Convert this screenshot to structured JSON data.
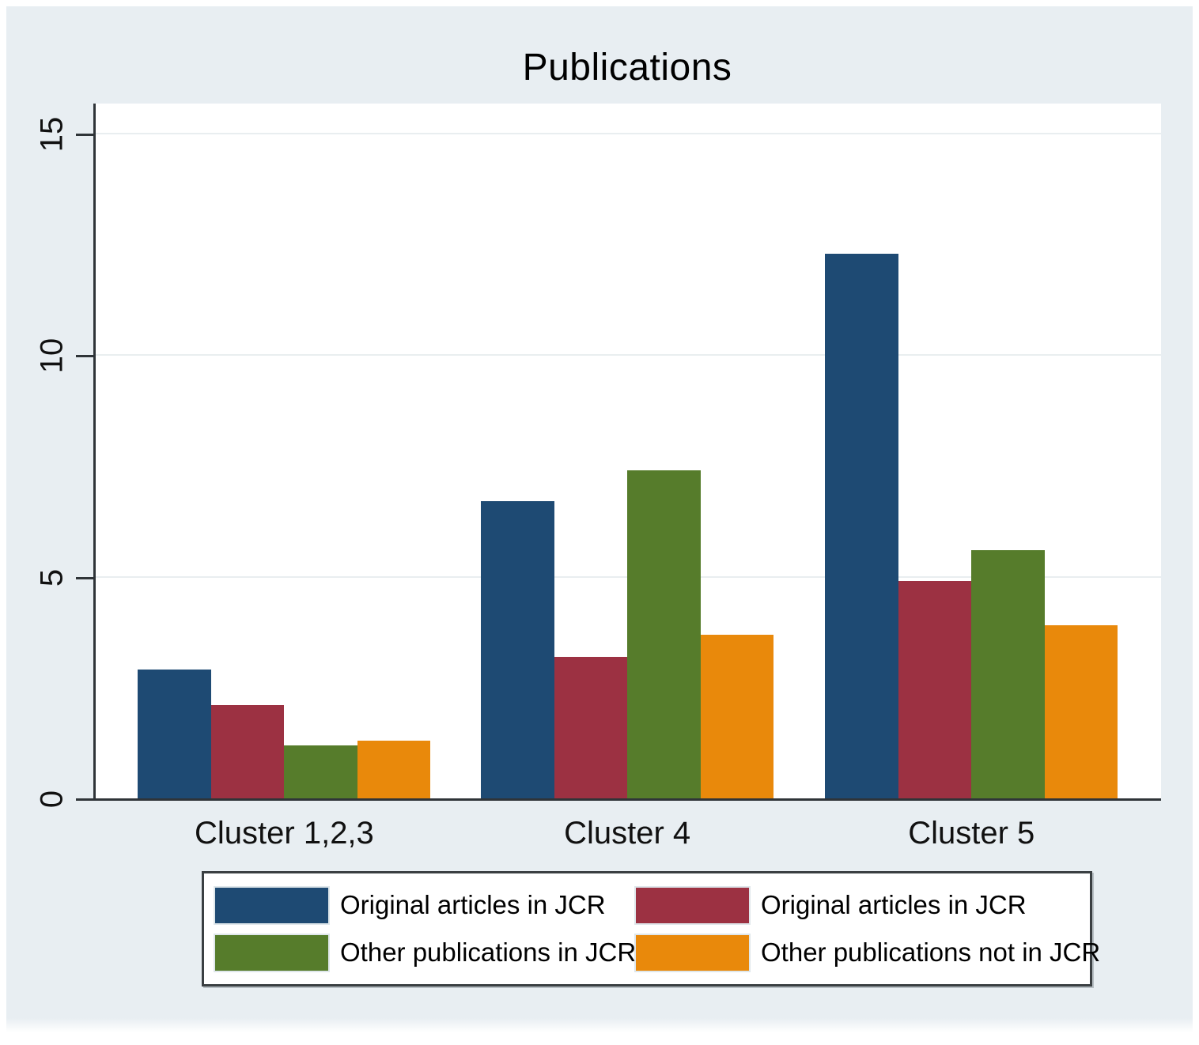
{
  "chart_data": {
    "type": "bar",
    "title": "Publications",
    "categories": [
      "Cluster 1,2,3",
      "Cluster 4",
      "Cluster 5"
    ],
    "series": [
      {
        "name": "Original articles in JCR",
        "color": "#1e4a73",
        "values": [
          2.9,
          6.7,
          12.3
        ]
      },
      {
        "name": "Original articles in JCR",
        "color": "#9c3142",
        "values": [
          2.1,
          3.2,
          4.9
        ]
      },
      {
        "name": "Other publications in JCR",
        "color": "#567c2b",
        "values": [
          1.2,
          7.4,
          5.6
        ]
      },
      {
        "name": "Other publications not in JCR",
        "color": "#e9890b",
        "values": [
          1.3,
          3.7,
          3.9
        ]
      }
    ],
    "xlabel": "",
    "ylabel": "",
    "ylim": [
      0,
      15
    ],
    "yticks": [
      0,
      5,
      10,
      15
    ],
    "grid": true,
    "legend_position": "bottom",
    "legend_columns": 2
  },
  "colors": {
    "figure_background": "#e8eef2",
    "plot_background": "#ffffff",
    "axis_line": "#2f3438",
    "gridline": "#e9eef0",
    "legend_border": "#3a3f42",
    "text": "#000000"
  }
}
